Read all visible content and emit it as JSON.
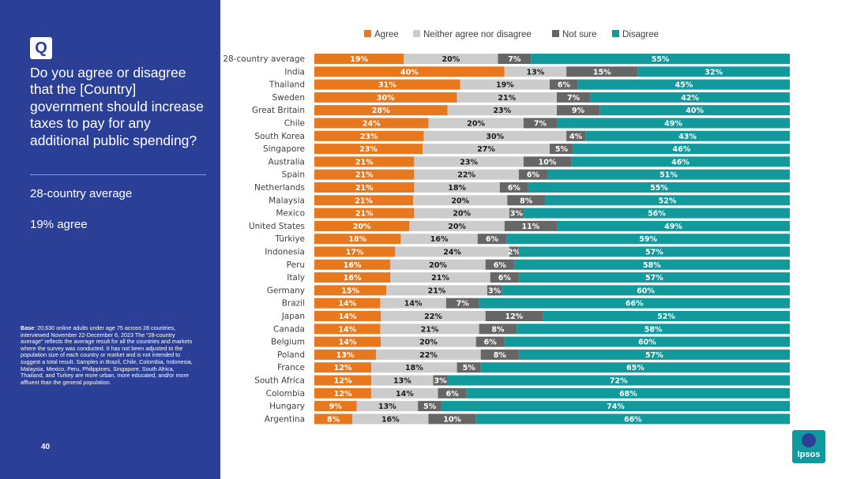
{
  "sidebar": {
    "badge": "Q",
    "question": "Do you agree or disagree that the [Country] government should increase taxes to pay for any additional public spending?",
    "avg_label": "28-country average",
    "avg_value": "19% agree",
    "base_bold": "Base",
    "base_text": ": 20,630 online adults under age 75 across 28 countries, interviewed November 22-December 6, 2023 The “28-country average” reflects the average result for all the countries and markets where the survey was conducted. It has not been adjusted to the population size of each country or market and is not intended to suggest a total result. Samples in Brazil, Chile, Colombia, Indonesia, Malaysia, Mexico, Peru, Philippines, Singapore, South Africa, Thailand, and Turkey are more urban, more educated, and/or more affluent than the general population.",
    "page_number": "40"
  },
  "logo": {
    "text": "Ipsos"
  },
  "colors": {
    "agree": "#e8781e",
    "neither": "#cccccc",
    "not_sure": "#666666",
    "disagree": "#12999c",
    "sidebar": "#2b3f97"
  },
  "chart_data": {
    "type": "bar",
    "orientation": "horizontal-stacked-100",
    "categories": [
      "28-country average",
      "India",
      "Thailand",
      "Sweden",
      "Great Britain",
      "Chile",
      "South Korea",
      "Singapore",
      "Australia",
      "Spain",
      "Netherlands",
      "Malaysia",
      "Mexico",
      "United States",
      "Türkiye",
      "Indonesia",
      "Peru",
      "Italy",
      "Germany",
      "Brazil",
      "Japan",
      "Canada",
      "Belgium",
      "Poland",
      "France",
      "South Africa",
      "Colombia",
      "Hungary",
      "Argentina"
    ],
    "series": [
      {
        "name": "Agree",
        "values": [
          19,
          40,
          31,
          30,
          28,
          24,
          23,
          23,
          21,
          21,
          21,
          21,
          21,
          20,
          18,
          17,
          16,
          16,
          15,
          14,
          14,
          14,
          14,
          13,
          12,
          12,
          12,
          9,
          8
        ]
      },
      {
        "name": "Neither agree nor disagree",
        "values": [
          20,
          13,
          19,
          21,
          23,
          20,
          30,
          27,
          23,
          22,
          18,
          20,
          20,
          20,
          16,
          24,
          20,
          21,
          21,
          14,
          22,
          21,
          20,
          22,
          18,
          13,
          14,
          13,
          16
        ]
      },
      {
        "name": "Not sure",
        "values": [
          7,
          15,
          6,
          7,
          9,
          7,
          4,
          5,
          10,
          6,
          6,
          8,
          3,
          11,
          6,
          2,
          6,
          6,
          3,
          7,
          12,
          8,
          6,
          8,
          5,
          3,
          6,
          5,
          10
        ]
      },
      {
        "name": "Disagree",
        "values": [
          55,
          32,
          45,
          42,
          40,
          49,
          43,
          46,
          46,
          51,
          55,
          52,
          56,
          49,
          59,
          57,
          58,
          57,
          60,
          66,
          52,
          58,
          60,
          57,
          65,
          72,
          68,
          74,
          66
        ]
      }
    ],
    "value_suffix": "%",
    "legend_position": "top"
  }
}
